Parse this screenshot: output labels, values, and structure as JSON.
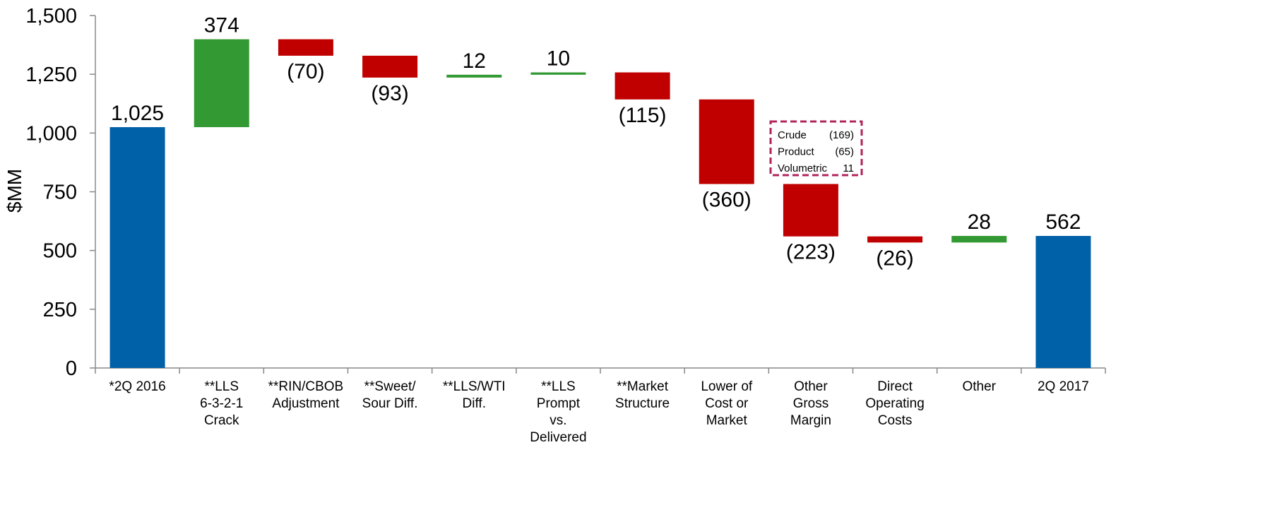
{
  "chart_data": {
    "type": "waterfall",
    "y_label": "$MM",
    "categories": [
      [
        "*2Q 2016"
      ],
      [
        "**LLS",
        "6-3-2-1",
        "Crack"
      ],
      [
        "**RIN/CBOB",
        "Adjustment"
      ],
      [
        "**Sweet/",
        "Sour Diff."
      ],
      [
        "**LLS/WTI",
        "Diff."
      ],
      [
        "**LLS",
        "Prompt",
        "vs.",
        "Delivered"
      ],
      [
        "**Market",
        "Structure"
      ],
      [
        "Lower of",
        "Cost or",
        "Market"
      ],
      [
        "Other",
        "Gross",
        "Margin"
      ],
      [
        "Direct",
        "Operating",
        "Costs"
      ],
      [
        "Other"
      ],
      [
        "2Q 2017"
      ]
    ],
    "values": [
      1025,
      374,
      -70,
      -93,
      12,
      10,
      -115,
      -360,
      -223,
      -26,
      28,
      562
    ],
    "value_labels": [
      "1,025",
      "374",
      "(70)",
      "(93)",
      "12",
      "10",
      "(115)",
      "(360)",
      "(223)",
      "(26)",
      "28",
      "562"
    ],
    "measures": [
      "total",
      "relative",
      "relative",
      "relative",
      "relative",
      "relative",
      "relative",
      "relative",
      "relative",
      "relative",
      "relative",
      "total"
    ],
    "colors": {
      "total": "#0060a8",
      "increase": "#339933",
      "decrease": "#c00000"
    },
    "ylim": [
      0,
      1500
    ],
    "yticks": [
      0,
      250,
      500,
      750,
      {
        "value": 1000,
        "label": "1,000"
      },
      {
        "value": 1250,
        "label": "1,250"
      },
      {
        "value": 1500,
        "label": "1,500"
      }
    ],
    "annotation": {
      "items": [
        {
          "label": "Crude",
          "value": "(169)"
        },
        {
          "label": "Product",
          "value": "(65)"
        },
        {
          "label": "Volumetric",
          "value": "11"
        }
      ]
    }
  }
}
